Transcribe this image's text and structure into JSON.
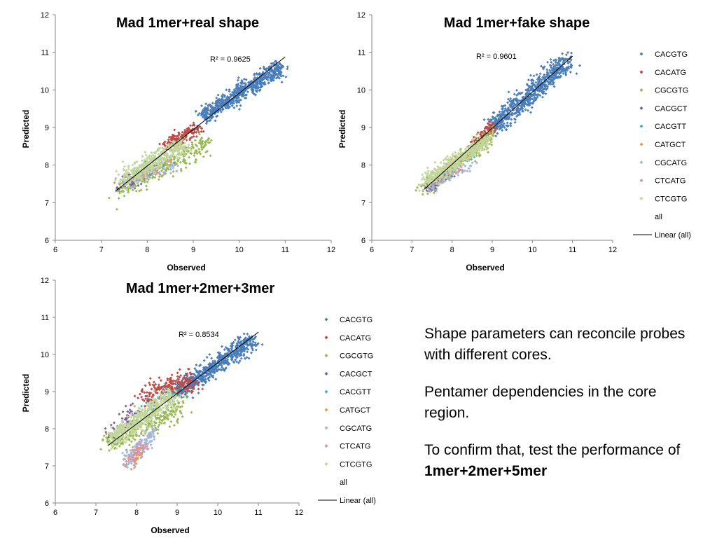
{
  "chart_data": [
    {
      "type": "scatter",
      "title": "Mad 1mer+real shape",
      "xlabel": "Observed",
      "ylabel": "Predicted",
      "xlim": [
        6,
        12
      ],
      "ylim": [
        6,
        12
      ],
      "xticks": [
        6,
        7,
        8,
        9,
        10,
        11,
        12
      ],
      "yticks": [
        6,
        7,
        8,
        9,
        10,
        11,
        12
      ],
      "r2_label": "R² = 0.9625",
      "fit_line": {
        "x": [
          7.3,
          11.0
        ],
        "y": [
          7.3,
          10.88
        ]
      },
      "legend": null,
      "series": [
        {
          "name": "CACGTG",
          "color": "#4a7ebb",
          "cloud": {
            "x": [
              9.2,
              10.9
            ],
            "y": [
              9.3,
              10.6
            ],
            "spread": 0.18,
            "n": 650
          }
        },
        {
          "name": "CACATG",
          "color": "#be4b48",
          "cloud": {
            "x": [
              8.4,
              9.1
            ],
            "y": [
              8.5,
              9.0
            ],
            "spread": 0.15,
            "n": 170
          }
        },
        {
          "name": "CGCGTG",
          "color": "#98b954",
          "cloud": {
            "x": [
              7.4,
              9.3
            ],
            "y": [
              7.3,
              8.6
            ],
            "spread": 0.22,
            "n": 260
          }
        },
        {
          "name": "CACGCT",
          "color": "#7d60a0",
          "cloud": {
            "x": [
              7.4,
              8.2
            ],
            "y": [
              7.4,
              7.9
            ],
            "spread": 0.15,
            "n": 70
          }
        },
        {
          "name": "CACGTT",
          "color": "#46aac5",
          "cloud": {
            "x": [
              7.6,
              8.6
            ],
            "y": [
              7.7,
              8.2
            ],
            "spread": 0.15,
            "n": 40
          }
        },
        {
          "name": "CATGCT",
          "color": "#f79646",
          "cloud": {
            "x": [
              7.8,
              8.5
            ],
            "y": [
              7.8,
              8.1
            ],
            "spread": 0.1,
            "n": 20
          }
        },
        {
          "name": "CGCATG",
          "color": "#a5b6dc",
          "cloud": {
            "x": [
              7.5,
              8.6
            ],
            "y": [
              7.5,
              8.0
            ],
            "spread": 0.15,
            "n": 70
          }
        },
        {
          "name": "CTCATG",
          "color": "#d99694",
          "cloud": {
            "x": [
              7.6,
              8.3
            ],
            "y": [
              7.6,
              7.9
            ],
            "spread": 0.1,
            "n": 30
          }
        },
        {
          "name": "CTCGTG",
          "color": "#c3d69b",
          "cloud": {
            "x": [
              7.5,
              8.8
            ],
            "y": [
              7.6,
              8.6
            ],
            "spread": 0.2,
            "n": 460
          }
        }
      ]
    },
    {
      "type": "scatter",
      "title": "Mad 1mer+fake shape",
      "xlabel": "Observed",
      "ylabel": "Predicted",
      "xlim": [
        6,
        12
      ],
      "ylim": [
        6,
        12
      ],
      "xticks": [
        6,
        7,
        8,
        9,
        10,
        11,
        12
      ],
      "yticks": [
        6,
        7,
        8,
        9,
        10,
        11,
        12
      ],
      "r2_label": "R² = 0.9601",
      "fit_line": {
        "x": [
          7.3,
          11.0
        ],
        "y": [
          7.35,
          10.9
        ]
      },
      "legend": [
        "CACGTG",
        "CACATG",
        "CGCGTG",
        "CACGCT",
        "CACGTT",
        "CATGCT",
        "CGCATG",
        "CTCATG",
        "CTCGTG",
        "all",
        "Linear (all)"
      ],
      "series": [
        {
          "name": "CACGTG",
          "color": "#4a7ebb",
          "cloud": {
            "x": [
              9.0,
              10.9
            ],
            "y": [
              9.0,
              10.8
            ],
            "spread": 0.22,
            "n": 650
          }
        },
        {
          "name": "CACATG",
          "color": "#be4b48",
          "cloud": {
            "x": [
              8.5,
              9.0
            ],
            "y": [
              8.5,
              9.0
            ],
            "spread": 0.12,
            "n": 140
          }
        },
        {
          "name": "CGCGTG",
          "color": "#98b954",
          "cloud": {
            "x": [
              7.3,
              9.0
            ],
            "y": [
              7.3,
              8.8
            ],
            "spread": 0.16,
            "n": 240
          }
        },
        {
          "name": "CACGCT",
          "color": "#7d60a0",
          "cloud": {
            "x": [
              7.3,
              8.0
            ],
            "y": [
              7.4,
              7.8
            ],
            "spread": 0.12,
            "n": 70
          }
        },
        {
          "name": "CACGTT",
          "color": "#46aac5",
          "cloud": {
            "x": [
              7.6,
              8.5
            ],
            "y": [
              7.7,
              8.3
            ],
            "spread": 0.12,
            "n": 40
          }
        },
        {
          "name": "CATGCT",
          "color": "#f79646",
          "cloud": {
            "x": [
              7.8,
              8.6
            ],
            "y": [
              7.9,
              8.4
            ],
            "spread": 0.1,
            "n": 20
          }
        },
        {
          "name": "CGCATG",
          "color": "#a5b6dc",
          "cloud": {
            "x": [
              7.4,
              8.6
            ],
            "y": [
              7.4,
              8.1
            ],
            "spread": 0.14,
            "n": 70
          }
        },
        {
          "name": "CTCATG",
          "color": "#d99694",
          "cloud": {
            "x": [
              7.6,
              8.3
            ],
            "y": [
              7.6,
              8.0
            ],
            "spread": 0.1,
            "n": 30
          }
        },
        {
          "name": "CTCGTG",
          "color": "#c3d69b",
          "cloud": {
            "x": [
              7.3,
              8.9
            ],
            "y": [
              7.5,
              8.7
            ],
            "spread": 0.16,
            "n": 460
          }
        }
      ]
    },
    {
      "type": "scatter",
      "title": "Mad 1mer+2mer+3mer",
      "xlabel": "Observed",
      "ylabel": "Predicted",
      "xlim": [
        6,
        12
      ],
      "ylim": [
        6,
        12
      ],
      "xticks": [
        6,
        7,
        8,
        9,
        10,
        11,
        12
      ],
      "yticks": [
        6,
        7,
        8,
        9,
        10,
        11,
        12
      ],
      "r2_label": "R² = 0.8534",
      "fit_line": {
        "x": [
          7.3,
          11.0
        ],
        "y": [
          7.55,
          10.6
        ]
      },
      "legend": [
        "CACGTG",
        "CACATG",
        "CGCGTG",
        "CACGCT",
        "CACGTT",
        "CATGCT",
        "CGCATG",
        "CTCATG",
        "CTCGTG",
        "all",
        "Linear (all)"
      ],
      "series": [
        {
          "name": "CACGTG",
          "color": "#4a7ebb",
          "cloud": {
            "x": [
              9.0,
              10.9
            ],
            "y": [
              9.0,
              10.4
            ],
            "spread": 0.2,
            "n": 650
          }
        },
        {
          "name": "CACATG",
          "color": "#be4b48",
          "cloud": {
            "x": [
              8.2,
              9.4
            ],
            "y": [
              8.9,
              9.3
            ],
            "spread": 0.25,
            "n": 220
          }
        },
        {
          "name": "CGCGTG",
          "color": "#98b954",
          "cloud": {
            "x": [
              7.3,
              9.1
            ],
            "y": [
              7.6,
              8.6
            ],
            "spread": 0.25,
            "n": 260
          }
        },
        {
          "name": "CACGCT",
          "color": "#7d60a0",
          "cloud": {
            "x": [
              7.4,
              8.0
            ],
            "y": [
              7.8,
              8.5
            ],
            "spread": 0.2,
            "n": 70
          }
        },
        {
          "name": "CACGTT",
          "color": "#46aac5",
          "cloud": {
            "x": [
              8.2,
              9.0
            ],
            "y": [
              8.6,
              9.0
            ],
            "spread": 0.15,
            "n": 40
          }
        },
        {
          "name": "CATGCT",
          "color": "#f79646",
          "cloud": {
            "x": [
              7.8,
              8.2
            ],
            "y": [
              6.9,
              7.5
            ],
            "spread": 0.12,
            "n": 35
          }
        },
        {
          "name": "CGCATG",
          "color": "#a5b6dc",
          "cloud": {
            "x": [
              7.8,
              8.4
            ],
            "y": [
              7.1,
              7.9
            ],
            "spread": 0.2,
            "n": 130
          }
        },
        {
          "name": "CTCATG",
          "color": "#d99694",
          "cloud": {
            "x": [
              7.8,
              8.2
            ],
            "y": [
              7.1,
              7.6
            ],
            "spread": 0.15,
            "n": 50
          }
        },
        {
          "name": "CTCGTG",
          "color": "#c3d69b",
          "cloud": {
            "x": [
              7.4,
              8.9
            ],
            "y": [
              7.7,
              8.9
            ],
            "spread": 0.22,
            "n": 460
          }
        }
      ]
    }
  ],
  "bullets": {
    "b1": "Shape parameters can reconcile probes with different cores.",
    "b2": "Pentamer dependencies in the core region.",
    "b3_prefix": "To confirm that, test the performance of ",
    "b3_bold": "1mer+2mer+5mer"
  }
}
